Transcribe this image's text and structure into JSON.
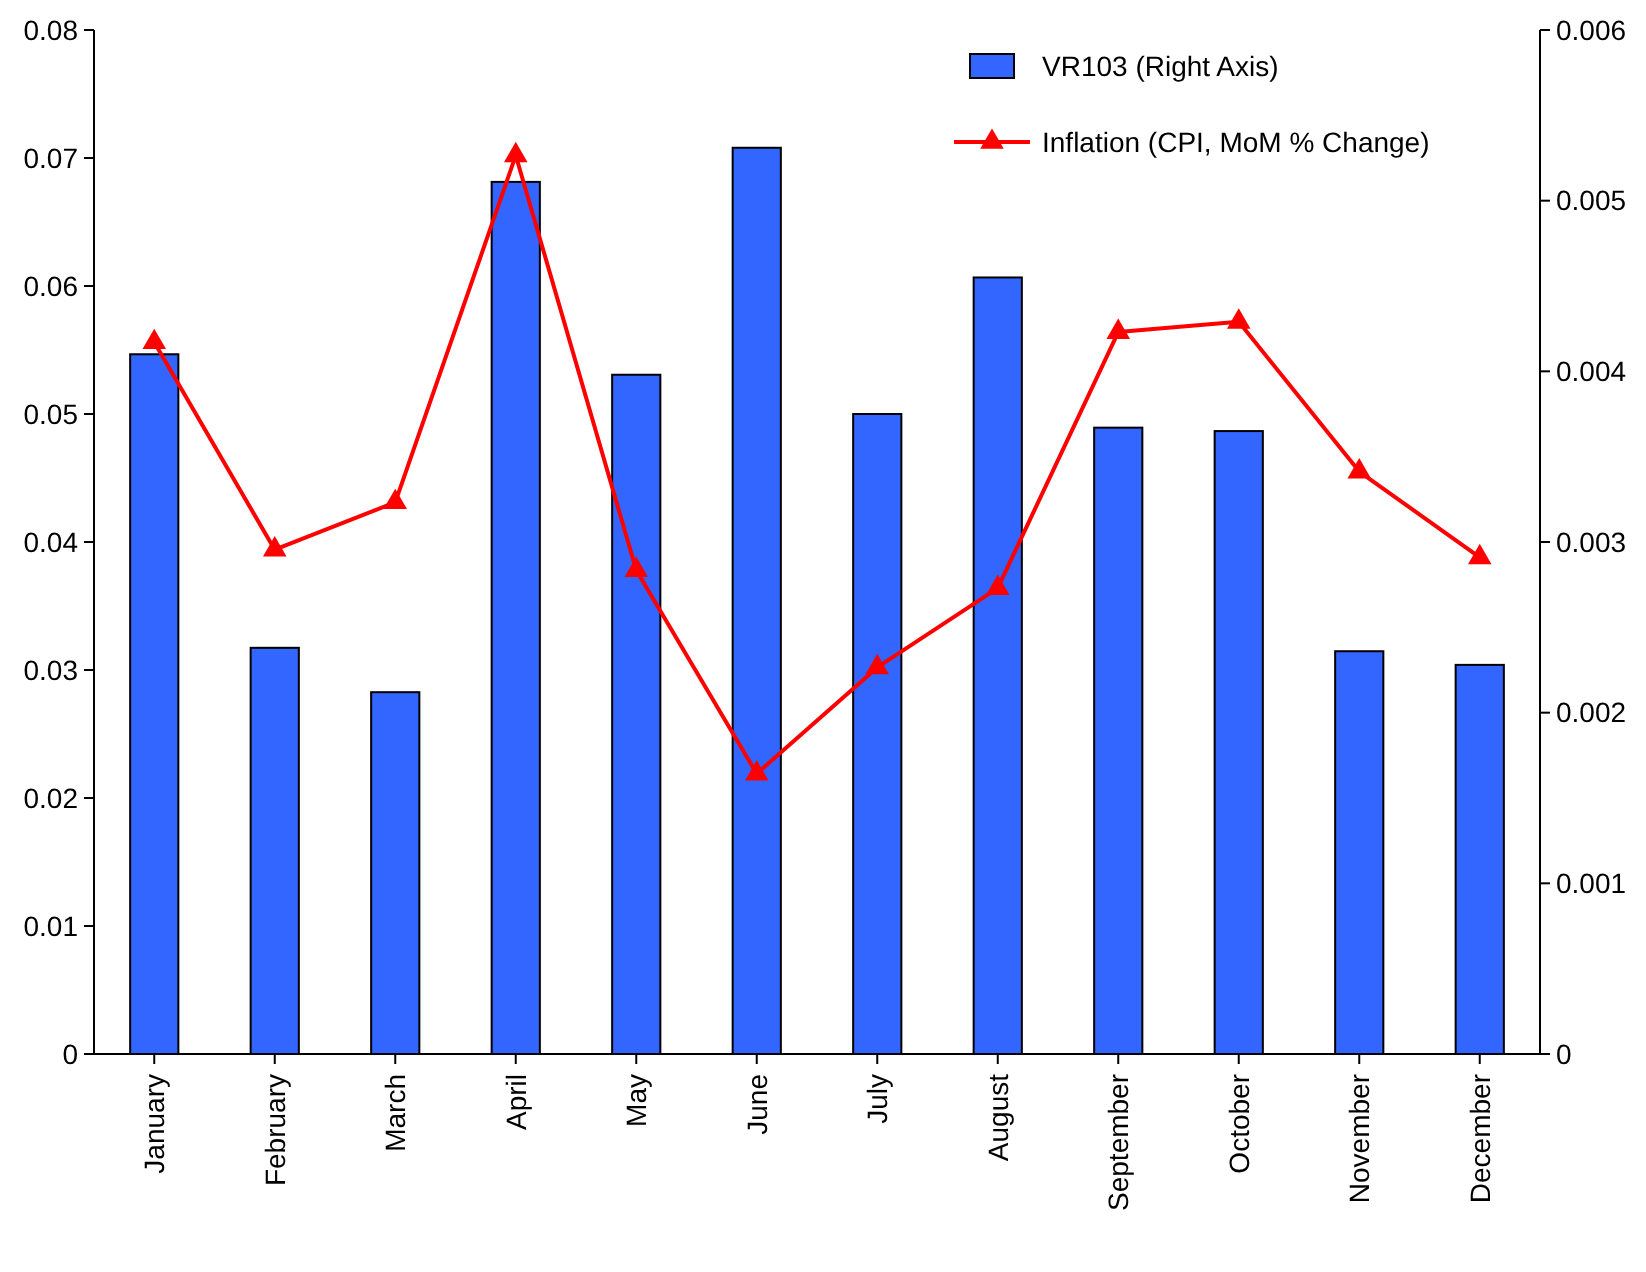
{
  "chart_data": {
    "type": "bar",
    "categories": [
      "January",
      "February",
      "March",
      "April",
      "May",
      "June",
      "July",
      "August",
      "September",
      "October",
      "November",
      "December"
    ],
    "series": [
      {
        "name": "VR103 (Right Axis)",
        "axis": "y2",
        "color": "#3366ff",
        "values": [
          0.0041,
          0.00238,
          0.00212,
          0.00511,
          0.00398,
          0.00531,
          0.00375,
          0.00455,
          0.00367,
          0.00365,
          0.00236,
          0.00228
        ]
      },
      {
        "name": "Inflation (CPI, MoM % Change)",
        "type": "line",
        "color": "#ff0000",
        "marker": "triangle",
        "values": [
          0.0556,
          0.0394,
          0.0431,
          0.0702,
          0.0378,
          0.0219,
          0.0302,
          0.0364,
          0.0564,
          0.0572,
          0.0455,
          0.0388
        ]
      }
    ],
    "ylim": [
      0,
      0.08
    ],
    "yticks": [
      0,
      0.01,
      0.02,
      0.03,
      0.04,
      0.05,
      0.06,
      0.07,
      0.08
    ],
    "y2lim": [
      0,
      0.006
    ],
    "y2ticks": [
      0,
      0.001,
      0.002,
      0.003,
      0.004,
      0.005,
      0.006
    ],
    "legend": "top right",
    "grid": false
  }
}
